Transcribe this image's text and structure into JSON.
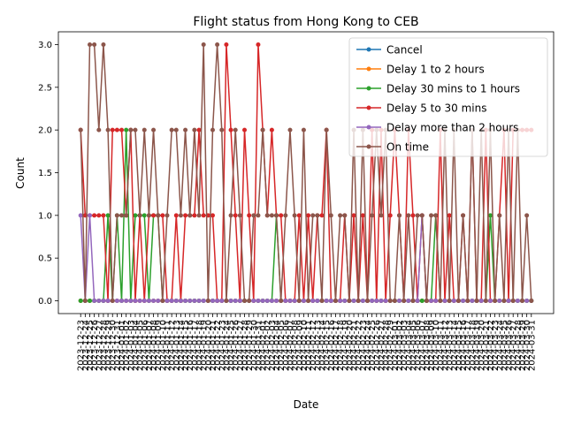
{
  "chart_data": {
    "type": "line",
    "title": "Flight status from Hong Kong to CEB",
    "xlabel": "Date",
    "ylabel": "Count",
    "ylim": [
      -0.15,
      3.15
    ],
    "yticks": [
      0.0,
      0.5,
      1.0,
      1.5,
      2.0,
      2.5,
      3.0
    ],
    "grid": false,
    "legend_position": "top-right",
    "x": [
      "2023-12-23",
      "2023-12-24",
      "2023-12-25",
      "2023-12-26",
      "2023-12-27",
      "2023-12-28",
      "2023-12-29",
      "2023-12-30",
      "2023-12-31",
      "2024-01-01",
      "2024-01-02",
      "2024-01-03",
      "2024-01-04",
      "2024-01-05",
      "2024-01-06",
      "2024-01-07",
      "2024-01-08",
      "2024-01-09",
      "2024-01-10",
      "2024-01-11",
      "2024-01-12",
      "2024-01-13",
      "2024-01-14",
      "2024-01-15",
      "2024-01-16",
      "2024-01-17",
      "2024-01-18",
      "2024-01-19",
      "2024-01-20",
      "2024-01-21",
      "2024-01-22",
      "2024-01-23",
      "2024-01-24",
      "2024-01-25",
      "2024-01-26",
      "2024-01-27",
      "2024-01-28",
      "2024-01-29",
      "2024-01-30",
      "2024-01-31",
      "2024-02-01",
      "2024-02-02",
      "2024-02-03",
      "2024-02-04",
      "2024-02-05",
      "2024-02-06",
      "2024-02-07",
      "2024-02-08",
      "2024-02-09",
      "2024-02-10",
      "2024-02-11",
      "2024-02-12",
      "2024-02-13",
      "2024-02-14",
      "2024-02-15",
      "2024-02-16",
      "2024-02-17",
      "2024-02-18",
      "2024-02-19",
      "2024-02-20",
      "2024-02-21",
      "2024-02-22",
      "2024-02-23",
      "2024-02-24",
      "2024-02-25",
      "2024-02-26",
      "2024-02-27",
      "2024-02-28",
      "2024-02-29",
      "2024-03-01",
      "2024-03-02",
      "2024-03-03",
      "2024-03-04",
      "2024-03-05",
      "2024-03-06",
      "2024-03-07",
      "2024-03-08",
      "2024-03-09",
      "2024-03-10",
      "2024-03-11",
      "2024-03-12",
      "2024-03-13",
      "2024-03-14",
      "2024-03-15",
      "2024-03-16",
      "2024-03-17",
      "2024-03-18",
      "2024-03-19",
      "2024-03-20",
      "2024-03-21",
      "2024-03-22",
      "2024-03-23",
      "2024-03-24",
      "2024-03-25",
      "2024-03-26",
      "2024-03-27",
      "2024-03-28",
      "2024-03-29",
      "2024-03-30",
      "2024-03-31"
    ],
    "series": [
      {
        "name": "Cancel",
        "color": "#1f77b4",
        "values": [
          0,
          0,
          0,
          0,
          0,
          0,
          0,
          0,
          0,
          0,
          0,
          0,
          0,
          0,
          0,
          0,
          0,
          0,
          0,
          0,
          0,
          0,
          0,
          0,
          0,
          0,
          0,
          0,
          0,
          0,
          0,
          0,
          0,
          0,
          0,
          0,
          0,
          0,
          0,
          0,
          0,
          0,
          0,
          0,
          0,
          0,
          0,
          0,
          0,
          0,
          0,
          0,
          0,
          0,
          0,
          0,
          0,
          0,
          0,
          0,
          0,
          0,
          0,
          0,
          0,
          0,
          0,
          0,
          0,
          0,
          0,
          0,
          0,
          0,
          0,
          0,
          0,
          0,
          0,
          0,
          0,
          0,
          0,
          0,
          0,
          0,
          0,
          0,
          0,
          0,
          0,
          0,
          0,
          0,
          0,
          0,
          0,
          0,
          0,
          0
        ]
      },
      {
        "name": "Delay 1 to 2 hours",
        "color": "#ff7f0e",
        "values": [
          0,
          0,
          0,
          0,
          0,
          0,
          0,
          0,
          0,
          0,
          0,
          0,
          0,
          0,
          0,
          0,
          0,
          0,
          0,
          0,
          0,
          0,
          0,
          0,
          0,
          0,
          0,
          0,
          0,
          0,
          0,
          0,
          0,
          0,
          0,
          0,
          0,
          0,
          0,
          0,
          0,
          0,
          0,
          0,
          0,
          0,
          0,
          0,
          0,
          0,
          0,
          0,
          0,
          0,
          0,
          0,
          0,
          0,
          0,
          0,
          0,
          0,
          0,
          0,
          0,
          0,
          0,
          0,
          0,
          0,
          0,
          0,
          0,
          0,
          0,
          0,
          0,
          0,
          0,
          0,
          0,
          0,
          0,
          0,
          0,
          0,
          0,
          0,
          0,
          0,
          0,
          0,
          0,
          0,
          0,
          0,
          0,
          0,
          0,
          0
        ]
      },
      {
        "name": "Delay 30 mins to 1 hours",
        "color": "#2ca02c",
        "values": [
          0,
          0,
          0,
          0,
          0,
          0,
          1,
          0,
          1,
          0,
          2,
          0,
          1,
          1,
          1,
          0,
          1,
          1,
          0,
          0,
          0,
          0,
          0,
          0,
          0,
          0,
          0,
          0,
          0,
          0,
          0,
          0,
          0,
          0,
          0,
          0,
          0,
          0,
          0,
          0,
          0,
          0,
          0,
          1,
          0,
          0,
          0,
          0,
          0,
          0,
          0,
          0,
          0,
          0,
          0,
          0,
          0,
          0,
          0,
          0,
          0,
          0,
          0,
          0,
          0,
          0,
          0,
          0,
          0,
          0,
          0,
          0,
          0,
          0,
          0,
          0,
          0,
          0,
          1,
          0,
          0,
          0,
          0,
          0,
          0,
          0,
          0,
          0,
          0,
          0,
          1,
          0,
          0,
          0,
          0,
          0,
          0,
          0,
          0,
          0
        ]
      },
      {
        "name": "Delay 5 to 30 mins",
        "color": "#d62728",
        "values": [
          2,
          1,
          1,
          1,
          1,
          1,
          0,
          2,
          2,
          2,
          1,
          2,
          0,
          1,
          0,
          1,
          1,
          1,
          1,
          0,
          0,
          1,
          0,
          1,
          1,
          1,
          2,
          1,
          1,
          1,
          0,
          0,
          3,
          2,
          1,
          0,
          2,
          1,
          0,
          3,
          2,
          1,
          2,
          1,
          1,
          0,
          0,
          0,
          1,
          0,
          1,
          0,
          1,
          1,
          2,
          0,
          0,
          0,
          1,
          0,
          1,
          0,
          1,
          0,
          2,
          0,
          2,
          0,
          1,
          2,
          1,
          0,
          2,
          1,
          0,
          1,
          0,
          0,
          0,
          2,
          0,
          1,
          0,
          0,
          1,
          0,
          2,
          0,
          0,
          2,
          0,
          0,
          1,
          2,
          0,
          2,
          2,
          2,
          2,
          2
        ]
      },
      {
        "name": "Delay more than 2 hours",
        "color": "#9467bd",
        "values": [
          1,
          0,
          1,
          0,
          0,
          0,
          0,
          0,
          0,
          0,
          0,
          0,
          0,
          0,
          0,
          0,
          0,
          0,
          0,
          0,
          0,
          0,
          0,
          0,
          0,
          0,
          0,
          0,
          0,
          0,
          0,
          0,
          0,
          0,
          0,
          0,
          0,
          0,
          0,
          0,
          0,
          0,
          0,
          0,
          0,
          0,
          0,
          0,
          0,
          0,
          0,
          0,
          0,
          0,
          0,
          0,
          0,
          0,
          0,
          0,
          0,
          0,
          0,
          0,
          0,
          0,
          0,
          0,
          0,
          0,
          0,
          0,
          0,
          0,
          0,
          1,
          0,
          0,
          0,
          0,
          0,
          0,
          0,
          0,
          0,
          0,
          0,
          0,
          0,
          0,
          0,
          0,
          0,
          0,
          0,
          0,
          0,
          0,
          0,
          0
        ]
      },
      {
        "name": "On time",
        "color": "#8c564b",
        "values": [
          2,
          0,
          3,
          3,
          2,
          3,
          2,
          0,
          1,
          1,
          1,
          2,
          2,
          1,
          2,
          1,
          2,
          1,
          0,
          1,
          2,
          2,
          1,
          2,
          1,
          2,
          1,
          3,
          0,
          2,
          3,
          2,
          0,
          1,
          2,
          1,
          0,
          0,
          1,
          1,
          2,
          1,
          1,
          1,
          0,
          1,
          2,
          1,
          0,
          2,
          0,
          1,
          1,
          0,
          2,
          1,
          0,
          1,
          1,
          0,
          2,
          0,
          2,
          0,
          1,
          2,
          1,
          2,
          0,
          0,
          1,
          0,
          1,
          0,
          1,
          1,
          0,
          1,
          1,
          0,
          2,
          0,
          2,
          0,
          1,
          0,
          2,
          0,
          2,
          0,
          2,
          0,
          1,
          0,
          2,
          0,
          2,
          0,
          1,
          0
        ]
      }
    ]
  }
}
